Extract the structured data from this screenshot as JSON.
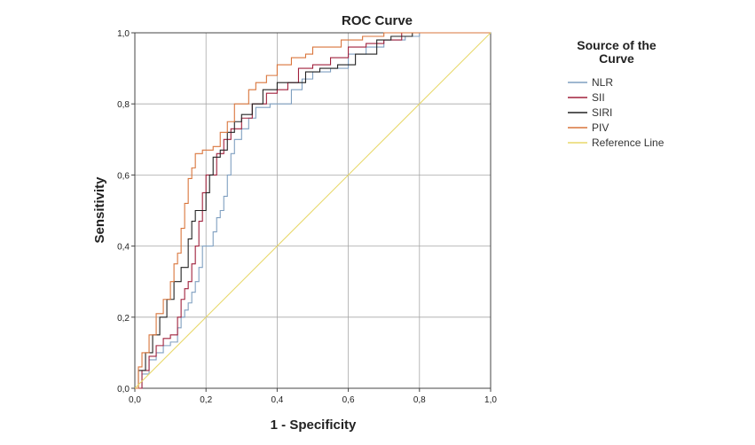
{
  "chart_data": {
    "type": "line",
    "title": "ROC Curve",
    "xlabel": "1 - Specificity",
    "ylabel": "Sensitivity",
    "xlim": [
      0,
      1
    ],
    "ylim": [
      0,
      1
    ],
    "x_ticks": [
      "0,0",
      "0,2",
      "0,4",
      "0,6",
      "0,8",
      "1,0"
    ],
    "y_ticks": [
      "0,0",
      "0,2",
      "0,4",
      "0,6",
      "0,8",
      "1,0"
    ],
    "grid": true,
    "legend": {
      "title_lines": [
        "Source of the",
        "Curve"
      ],
      "placement": "right"
    },
    "series": [
      {
        "name": "NLR",
        "color": "#7f9fc0",
        "points": [
          [
            0,
            0
          ],
          [
            0.02,
            0.04
          ],
          [
            0.04,
            0.08
          ],
          [
            0.06,
            0.1
          ],
          [
            0.08,
            0.12
          ],
          [
            0.1,
            0.13
          ],
          [
            0.12,
            0.17
          ],
          [
            0.13,
            0.2
          ],
          [
            0.14,
            0.22
          ],
          [
            0.15,
            0.24
          ],
          [
            0.16,
            0.27
          ],
          [
            0.17,
            0.3
          ],
          [
            0.18,
            0.34
          ],
          [
            0.19,
            0.4
          ],
          [
            0.21,
            0.4
          ],
          [
            0.22,
            0.44
          ],
          [
            0.23,
            0.48
          ],
          [
            0.24,
            0.5
          ],
          [
            0.25,
            0.54
          ],
          [
            0.26,
            0.6
          ],
          [
            0.27,
            0.66
          ],
          [
            0.28,
            0.7
          ],
          [
            0.3,
            0.73
          ],
          [
            0.32,
            0.76
          ],
          [
            0.34,
            0.79
          ],
          [
            0.38,
            0.8
          ],
          [
            0.42,
            0.8
          ],
          [
            0.44,
            0.84
          ],
          [
            0.47,
            0.87
          ],
          [
            0.5,
            0.89
          ],
          [
            0.55,
            0.9
          ],
          [
            0.6,
            0.94
          ],
          [
            0.65,
            0.96
          ],
          [
            0.7,
            0.98
          ],
          [
            0.76,
            0.99
          ],
          [
            0.8,
            1
          ],
          [
            1,
            1
          ]
        ]
      },
      {
        "name": "SII",
        "color": "#a0203c",
        "points": [
          [
            0,
            0
          ],
          [
            0.02,
            0.05
          ],
          [
            0.04,
            0.09
          ],
          [
            0.06,
            0.12
          ],
          [
            0.08,
            0.14
          ],
          [
            0.1,
            0.15
          ],
          [
            0.12,
            0.2
          ],
          [
            0.13,
            0.25
          ],
          [
            0.14,
            0.28
          ],
          [
            0.15,
            0.3
          ],
          [
            0.16,
            0.35
          ],
          [
            0.17,
            0.4
          ],
          [
            0.18,
            0.47
          ],
          [
            0.19,
            0.55
          ],
          [
            0.2,
            0.6
          ],
          [
            0.22,
            0.6
          ],
          [
            0.23,
            0.66
          ],
          [
            0.25,
            0.7
          ],
          [
            0.27,
            0.73
          ],
          [
            0.3,
            0.76
          ],
          [
            0.33,
            0.8
          ],
          [
            0.37,
            0.83
          ],
          [
            0.4,
            0.84
          ],
          [
            0.43,
            0.86
          ],
          [
            0.46,
            0.9
          ],
          [
            0.5,
            0.91
          ],
          [
            0.55,
            0.93
          ],
          [
            0.6,
            0.96
          ],
          [
            0.65,
            0.97
          ],
          [
            0.7,
            0.98
          ],
          [
            0.75,
            1
          ],
          [
            1,
            1
          ]
        ]
      },
      {
        "name": "SIRI",
        "color": "#222222",
        "points": [
          [
            0,
            0
          ],
          [
            0.01,
            0.05
          ],
          [
            0.03,
            0.1
          ],
          [
            0.05,
            0.15
          ],
          [
            0.07,
            0.2
          ],
          [
            0.09,
            0.25
          ],
          [
            0.11,
            0.3
          ],
          [
            0.13,
            0.34
          ],
          [
            0.15,
            0.42
          ],
          [
            0.16,
            0.47
          ],
          [
            0.17,
            0.5
          ],
          [
            0.19,
            0.5
          ],
          [
            0.2,
            0.55
          ],
          [
            0.21,
            0.6
          ],
          [
            0.22,
            0.65
          ],
          [
            0.24,
            0.67
          ],
          [
            0.26,
            0.72
          ],
          [
            0.28,
            0.75
          ],
          [
            0.3,
            0.77
          ],
          [
            0.33,
            0.8
          ],
          [
            0.36,
            0.84
          ],
          [
            0.4,
            0.86
          ],
          [
            0.45,
            0.86
          ],
          [
            0.48,
            0.89
          ],
          [
            0.52,
            0.9
          ],
          [
            0.57,
            0.91
          ],
          [
            0.62,
            0.94
          ],
          [
            0.68,
            0.98
          ],
          [
            0.72,
            0.99
          ],
          [
            0.78,
            1
          ],
          [
            1,
            1
          ]
        ]
      },
      {
        "name": "PIV",
        "color": "#d9753b",
        "points": [
          [
            0,
            0
          ],
          [
            0.01,
            0.06
          ],
          [
            0.02,
            0.1
          ],
          [
            0.04,
            0.15
          ],
          [
            0.06,
            0.21
          ],
          [
            0.08,
            0.25
          ],
          [
            0.1,
            0.3
          ],
          [
            0.11,
            0.35
          ],
          [
            0.12,
            0.38
          ],
          [
            0.13,
            0.45
          ],
          [
            0.14,
            0.52
          ],
          [
            0.15,
            0.59
          ],
          [
            0.16,
            0.62
          ],
          [
            0.17,
            0.66
          ],
          [
            0.19,
            0.67
          ],
          [
            0.22,
            0.68
          ],
          [
            0.24,
            0.72
          ],
          [
            0.26,
            0.75
          ],
          [
            0.28,
            0.8
          ],
          [
            0.3,
            0.8
          ],
          [
            0.32,
            0.84
          ],
          [
            0.34,
            0.86
          ],
          [
            0.37,
            0.88
          ],
          [
            0.4,
            0.91
          ],
          [
            0.44,
            0.93
          ],
          [
            0.48,
            0.94
          ],
          [
            0.5,
            0.96
          ],
          [
            0.55,
            0.96
          ],
          [
            0.58,
            0.98
          ],
          [
            0.64,
            0.99
          ],
          [
            0.7,
            1
          ],
          [
            1,
            1
          ]
        ]
      },
      {
        "name": "Reference Line",
        "color": "#e8d96a",
        "points": [
          [
            0,
            0
          ],
          [
            1,
            1
          ]
        ]
      }
    ]
  }
}
